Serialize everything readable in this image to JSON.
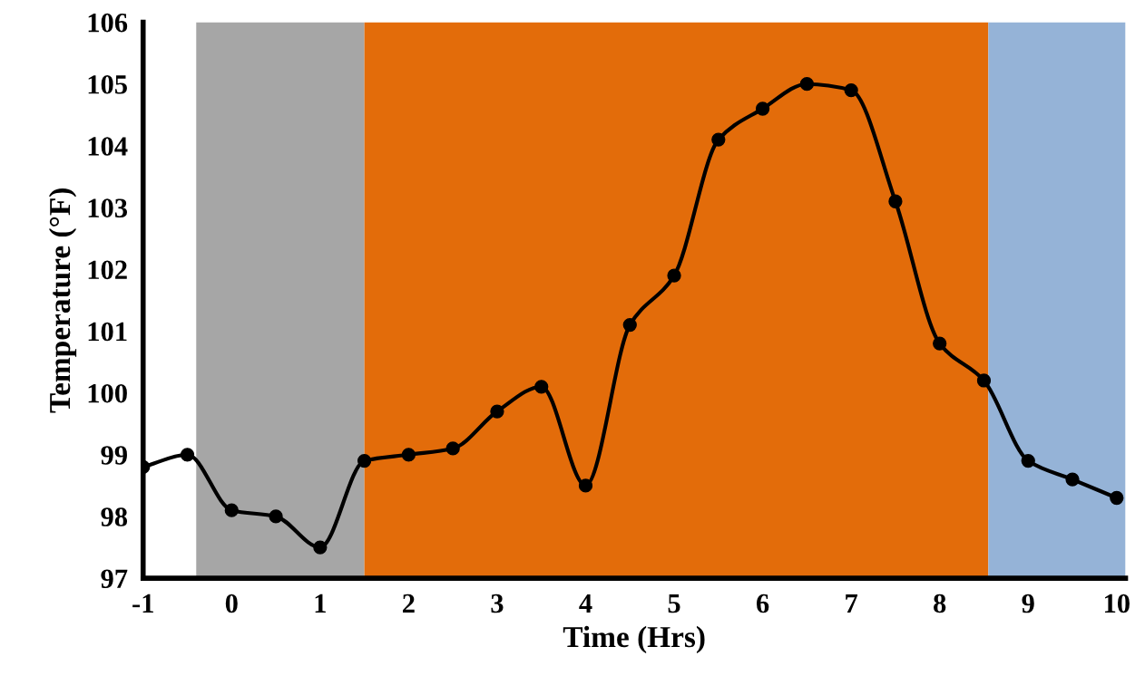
{
  "chart_data": {
    "type": "line",
    "xlabel": "Time (Hrs)",
    "ylabel": "Temperature (°F)",
    "x": [
      -1,
      -0.5,
      0,
      0.5,
      1,
      1.5,
      2,
      2.5,
      3,
      3.5,
      4,
      4.5,
      5,
      5.5,
      6,
      6.5,
      7,
      7.5,
      8,
      8.5,
      9,
      9.5,
      10
    ],
    "series": [
      {
        "color": "#000000",
        "values": [
          98.8,
          99.0,
          98.1,
          98.0,
          97.5,
          98.9,
          99.0,
          99.1,
          99.7,
          100.1,
          98.5,
          101.1,
          101.9,
          104.1,
          104.6,
          105.0,
          104.9,
          103.1,
          100.8,
          100.2,
          98.9,
          98.6,
          98.3
        ]
      }
    ],
    "xlim": [
      -1,
      10.1
    ],
    "xticks": [
      -1,
      0,
      1,
      2,
      3,
      4,
      5,
      6,
      7,
      8,
      9,
      10
    ],
    "ylim": [
      97,
      106
    ],
    "yticks": [
      97,
      98,
      99,
      100,
      101,
      102,
      103,
      104,
      105,
      106
    ],
    "bands": [
      {
        "axis": "x",
        "from": -0.4,
        "to": 1.5,
        "color": "#a6a6a6"
      },
      {
        "axis": "x",
        "from": 1.5,
        "to": 8.55,
        "color": "#e36c0a"
      },
      {
        "axis": "x",
        "from": 8.55,
        "to": 10.1,
        "color": "#95b3d7"
      }
    ],
    "marker": "circle",
    "line_style": "solid",
    "grid": false,
    "legend": false
  }
}
